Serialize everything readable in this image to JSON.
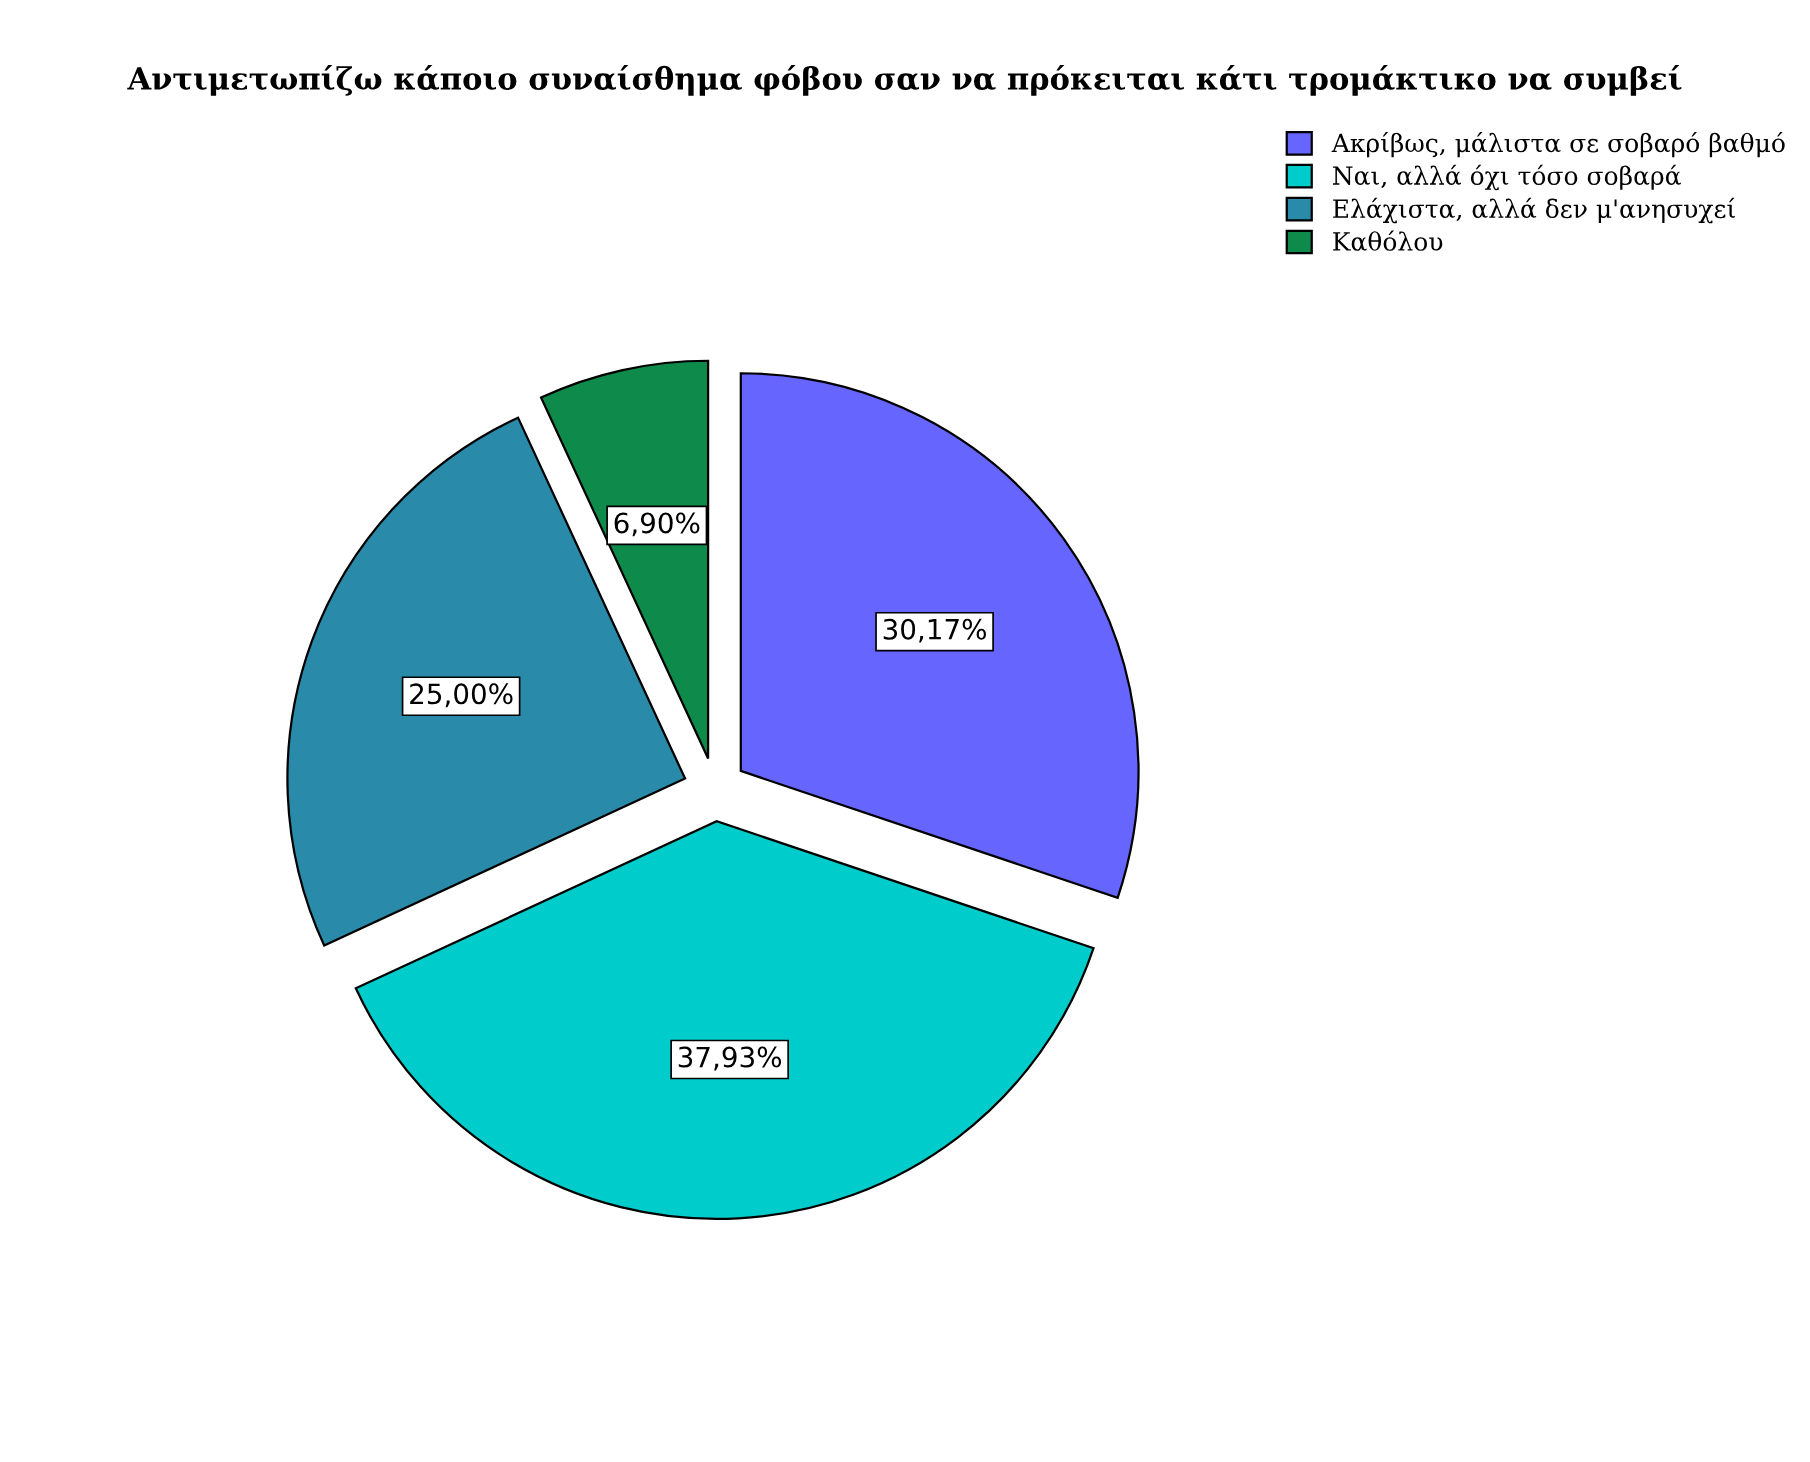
{
  "chart_data": {
    "type": "pie",
    "title": "Αντιμετωπίζω κάποιο συναίσθημα φόβου σαν να πρόκειται κάτι τρομάκτικο να συμβεί",
    "categories": [
      "Ακρίβως, μάλιστα σε σοβαρό βαθμό",
      "Ναι, αλλά όχι τόσο σοβαρά",
      "Ελάχιστα, αλλά δεν μ'ανησυχεί",
      "Καθόλου"
    ],
    "values": [
      30.17,
      37.93,
      25.0,
      6.9
    ],
    "colors": [
      "#6666ff",
      "#00cccc",
      "#2a8aaa",
      "#0e8a4a"
    ],
    "value_labels": [
      "30,17%",
      "37,93%",
      "25,00%",
      "6,90%"
    ],
    "legend": "top right"
  }
}
